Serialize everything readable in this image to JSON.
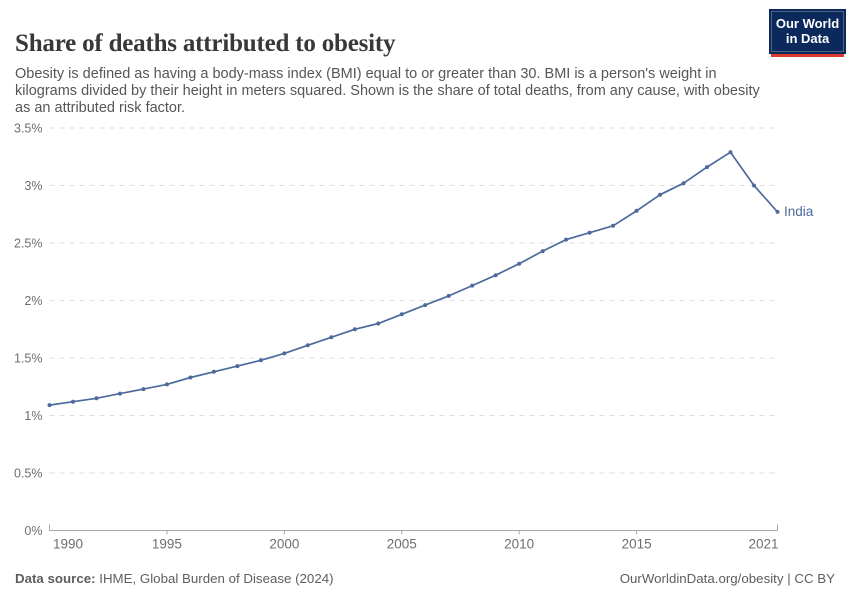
{
  "header": {
    "title": "Share of deaths attributed to obesity",
    "subtitle": "Obesity is defined as having a body-mass index (BMI) equal to or greater than 30. BMI is a person's weight in kilograms divided by their height in meters squared. Shown is the share of total deaths, from any cause, with obesity as an attributed risk factor.",
    "logo": {
      "line1": "Our World",
      "line2": "in Data"
    }
  },
  "chart_data": {
    "type": "line",
    "title": "Share of deaths attributed to obesity",
    "x": [
      1990,
      1991,
      1992,
      1993,
      1994,
      1995,
      1996,
      1997,
      1998,
      1999,
      2000,
      2001,
      2002,
      2003,
      2004,
      2005,
      2006,
      2007,
      2008,
      2009,
      2010,
      2011,
      2012,
      2013,
      2014,
      2015,
      2016,
      2017,
      2018,
      2019,
      2020,
      2021
    ],
    "series": [
      {
        "name": "India",
        "color": "#4c6a9c",
        "values": [
          1.09,
          1.12,
          1.15,
          1.19,
          1.23,
          1.27,
          1.33,
          1.38,
          1.43,
          1.48,
          1.54,
          1.61,
          1.68,
          1.75,
          1.8,
          1.88,
          1.96,
          2.04,
          2.13,
          2.22,
          2.32,
          2.43,
          2.53,
          2.59,
          2.65,
          2.78,
          2.92,
          3.02,
          3.16,
          3.29,
          3.0,
          2.77
        ]
      }
    ],
    "xlim": [
      1990,
      2021
    ],
    "ylim": [
      0,
      3.5
    ],
    "y_ticks": [
      {
        "value": 0,
        "label": "0%"
      },
      {
        "value": 0.5,
        "label": "0.5%"
      },
      {
        "value": 1,
        "label": "1%"
      },
      {
        "value": 1.5,
        "label": "1.5%"
      },
      {
        "value": 2,
        "label": "2%"
      },
      {
        "value": 2.5,
        "label": "2.5%"
      },
      {
        "value": 3,
        "label": "3%"
      },
      {
        "value": 3.5,
        "label": "3.5%"
      }
    ],
    "x_ticks": [
      {
        "value": 1990,
        "label": "1990"
      },
      {
        "value": 1995,
        "label": "1995"
      },
      {
        "value": 2000,
        "label": "2000"
      },
      {
        "value": 2005,
        "label": "2005"
      },
      {
        "value": 2010,
        "label": "2010"
      },
      {
        "value": 2015,
        "label": "2015"
      },
      {
        "value": 2021,
        "label": "2021"
      }
    ],
    "grid": "horizontal dashed",
    "legend_position": "end-of-line label"
  },
  "footer": {
    "source_label": "Data source:",
    "source_text": " IHME, Global Burden of Disease (2024)",
    "link_text": "OurWorldinData.org/obesity | CC BY"
  },
  "colors": {
    "line": "#4c6a9c",
    "logo_bg": "#0b2a5b",
    "logo_stripe": "#dc3a2f",
    "grid": "#dddddd",
    "axis": "#a8a8a8",
    "tick_label": "#6e6e6e"
  }
}
